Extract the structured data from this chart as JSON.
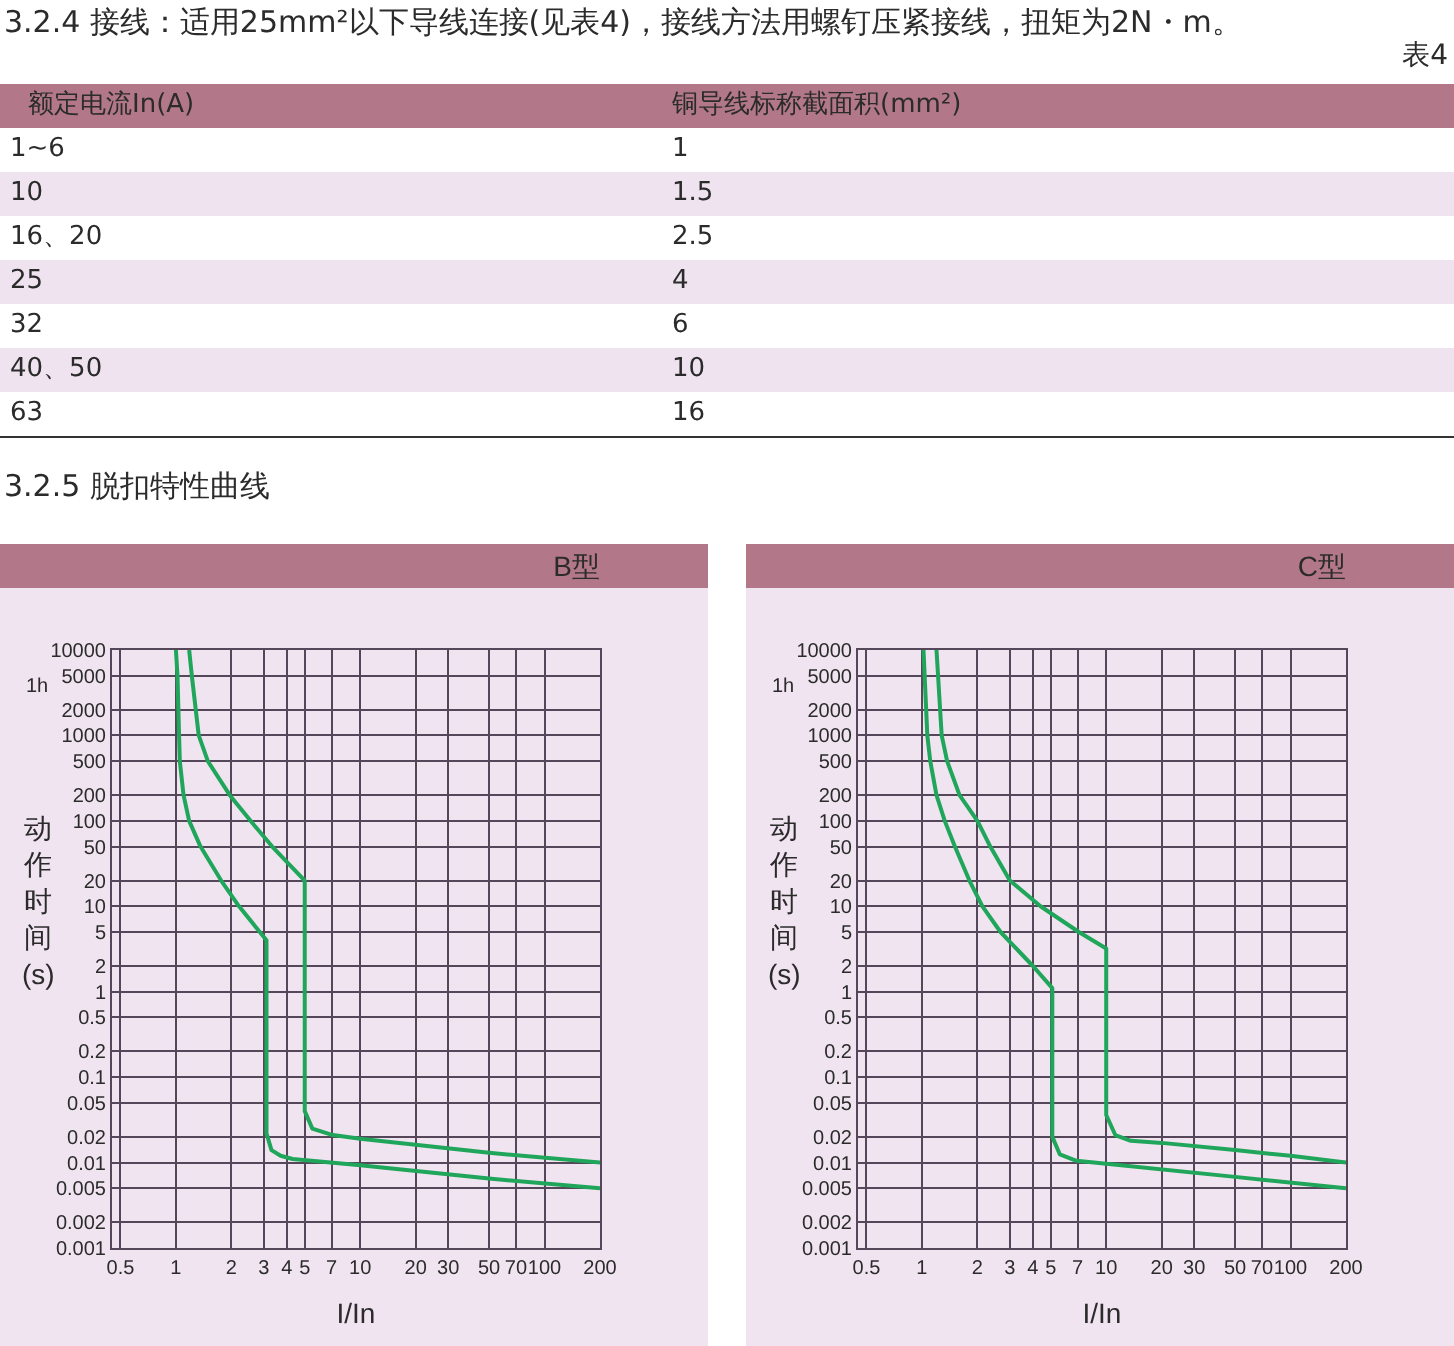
{
  "chart_data": [
    {
      "type": "other",
      "title": "3.2.4 接线：适用25mm²以下导线连接(见表4)，接线方法用螺钉压紧接线，扭矩为2N・m。",
      "annotations": [
        "表4",
        "额定电流In(A)",
        "铜导线标称截面积(mm²)",
        "1~6",
        "1",
        "10",
        "1.5",
        "16、20",
        "2.5",
        "25",
        "4",
        "32",
        "6",
        "40、50",
        "10",
        "63",
        "16"
      ]
    },
    {
      "type": "other",
      "title": "3.2.5 脱扣特性曲线"
    },
    {
      "type": "line",
      "title": "B型",
      "xlabel": "I/In",
      "ylabel": "动作时间(s)",
      "log": "xy",
      "grid": true,
      "xlim": [
        0.45,
        200
      ],
      "xticks": [
        0.5,
        1,
        2,
        3,
        4,
        5,
        7,
        10,
        20,
        30,
        50,
        70,
        100,
        200
      ],
      "ylim": [
        0.001,
        10000
      ],
      "yticks": [
        10000,
        5000,
        2000,
        1000,
        500,
        200,
        100,
        50,
        20,
        10,
        5,
        2,
        1,
        0.5,
        0.2,
        0.1,
        0.05,
        0.02,
        0.01,
        0.005,
        0.002,
        0.001
      ],
      "annotations": [
        "1h"
      ],
      "series": [
        {
          "color": "#1fa65a",
          "x": [
            1,
            1.02,
            1.04,
            1.05,
            1.1,
            1.18,
            1.36,
            1.76,
            2.2,
            3.1,
            3.1,
            3.3,
            3.7,
            4.3,
            10,
            50,
            200
          ],
          "values": [
            10000,
            5000,
            1000,
            500,
            200,
            100,
            50,
            20,
            10,
            4,
            0.022,
            0.014,
            0.012,
            0.011,
            0.0093,
            0.0065,
            0.005
          ]
        },
        {
          "color": "#1fa65a",
          "x": [
            1.18,
            1.22,
            1.33,
            1.49,
            1.96,
            2.54,
            3.33,
            5,
            5,
            5.5,
            7.1,
            10,
            50,
            200
          ],
          "values": [
            10000,
            5000,
            1000,
            500,
            200,
            100,
            50,
            20,
            0.04,
            0.025,
            0.021,
            0.019,
            0.013,
            0.01
          ]
        }
      ]
    },
    {
      "type": "line",
      "title": "C型",
      "xlabel": "I/In",
      "ylabel": "动作时间(s)",
      "log": "xy",
      "grid": true,
      "xlim": [
        0.45,
        200
      ],
      "xticks": [
        0.5,
        1,
        2,
        3,
        4,
        5,
        7,
        10,
        20,
        30,
        50,
        70,
        100,
        200
      ],
      "ylim": [
        0.001,
        10000
      ],
      "yticks": [
        10000,
        5000,
        2000,
        1000,
        500,
        200,
        100,
        50,
        20,
        10,
        5,
        2,
        1,
        0.5,
        0.2,
        0.1,
        0.05,
        0.02,
        0.01,
        0.005,
        0.002,
        0.001
      ],
      "annotations": [
        "1h"
      ],
      "series": [
        {
          "color": "#1fa65a",
          "x": [
            1.02,
            1.07,
            1.11,
            1.2,
            1.33,
            1.51,
            1.81,
            2.13,
            2.67,
            4,
            5.1,
            5.1,
            5.6,
            6.9,
            10,
            50,
            200
          ],
          "values": [
            10000,
            1000,
            500,
            200,
            100,
            50,
            20,
            10,
            5,
            2,
            1.1,
            0.02,
            0.0125,
            0.0105,
            0.0097,
            0.0068,
            0.005
          ]
        },
        {
          "color": "#1fa65a",
          "x": [
            1.2,
            1.28,
            1.37,
            1.6,
            2,
            2.35,
            3,
            4.4,
            7.1,
            10,
            10,
            11.2,
            13.6,
            20,
            50,
            100,
            200
          ],
          "values": [
            10000,
            1000,
            500,
            200,
            100,
            50,
            20,
            10,
            5,
            3.2,
            0.036,
            0.021,
            0.018,
            0.017,
            0.014,
            0.012,
            0.01
          ]
        }
      ]
    }
  ]
}
